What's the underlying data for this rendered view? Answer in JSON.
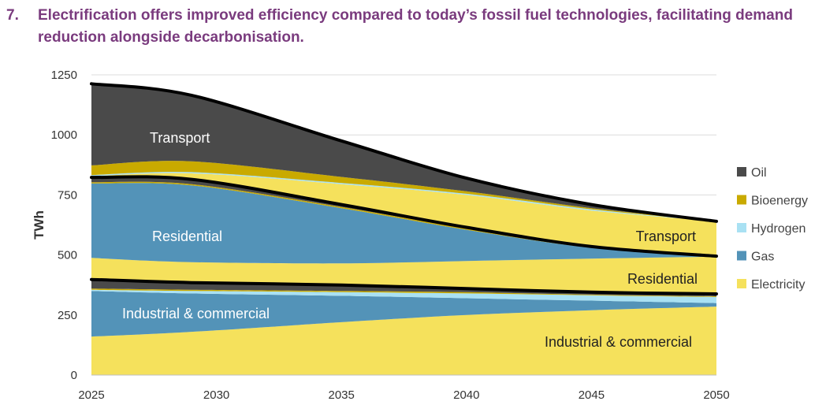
{
  "header": {
    "number": "7.",
    "title": "Electrification offers improved efficiency compared to today’s fossil fuel technologies, facilitating demand reduction alongside decarbonisation."
  },
  "chart_data": {
    "type": "area",
    "ylabel": "TWh",
    "xlabel": "",
    "xlim": [
      2025,
      2050
    ],
    "ylim": [
      0,
      1250
    ],
    "x_ticks": [
      "2025",
      "2030",
      "2035",
      "2040",
      "2045",
      "2050"
    ],
    "y_ticks": [
      "0",
      "250",
      "500",
      "750",
      "1000",
      "1250"
    ],
    "grid": "horizontal",
    "legend_position": "right",
    "colors": {
      "Oil": "#4a4a4a",
      "Bioenergy": "#c9aa00",
      "Hydrogen": "#a9e1f3",
      "Gas": "#5393b8",
      "Electricity": "#f5e15c"
    },
    "legend": [
      "Oil",
      "Bioenergy",
      "Hydrogen",
      "Gas",
      "Electricity"
    ],
    "x": [
      2025,
      2029,
      2035,
      2040,
      2045,
      2050
    ],
    "groups": [
      {
        "name": "Industrial & commercial",
        "label_main": "Industrial & commercial",
        "series": [
          {
            "name": "Electricity",
            "values": [
              160,
              180,
              220,
              250,
              270,
              285
            ]
          },
          {
            "name": "Gas",
            "values": [
              190,
              160,
              110,
              70,
              40,
              15
            ]
          },
          {
            "name": "Hydrogen",
            "values": [
              5,
              10,
              15,
              20,
              22,
              25
            ]
          },
          {
            "name": "Bioenergy",
            "values": [
              5,
              5,
              5,
              5,
              3,
              3
            ]
          },
          {
            "name": "Oil",
            "values": [
              38,
              30,
              25,
              15,
              10,
              10
            ]
          }
        ]
      },
      {
        "name": "Residential",
        "label_main": "Residential",
        "series": [
          {
            "name": "Electricity",
            "values": [
              90,
              85,
              90,
              115,
              140,
              155
            ]
          },
          {
            "name": "Gas",
            "values": [
              310,
              320,
              230,
              130,
              45,
              0
            ]
          },
          {
            "name": "Hydrogen",
            "values": [
              0,
              0,
              0,
              0,
              0,
              0
            ]
          },
          {
            "name": "Bioenergy",
            "values": [
              5,
              5,
              5,
              5,
              3,
              2
            ]
          },
          {
            "name": "Oil",
            "values": [
              20,
              20,
              10,
              5,
              2,
              0
            ]
          }
        ]
      },
      {
        "name": "Transport",
        "label_main": "Transport",
        "series": [
          {
            "name": "Electricity",
            "values": [
              5,
              25,
              85,
              135,
              150,
              145
            ]
          },
          {
            "name": "Gas",
            "values": [
              0,
              0,
              0,
              0,
              0,
              0
            ]
          },
          {
            "name": "Hydrogen",
            "values": [
              5,
              5,
              5,
              5,
              5,
              0
            ]
          },
          {
            "name": "Bioenergy",
            "values": [
              40,
              45,
              25,
              10,
              5,
              0
            ]
          },
          {
            "name": "Oil",
            "values": [
              340,
              275,
              150,
              55,
              15,
              0
            ]
          }
        ]
      }
    ]
  }
}
